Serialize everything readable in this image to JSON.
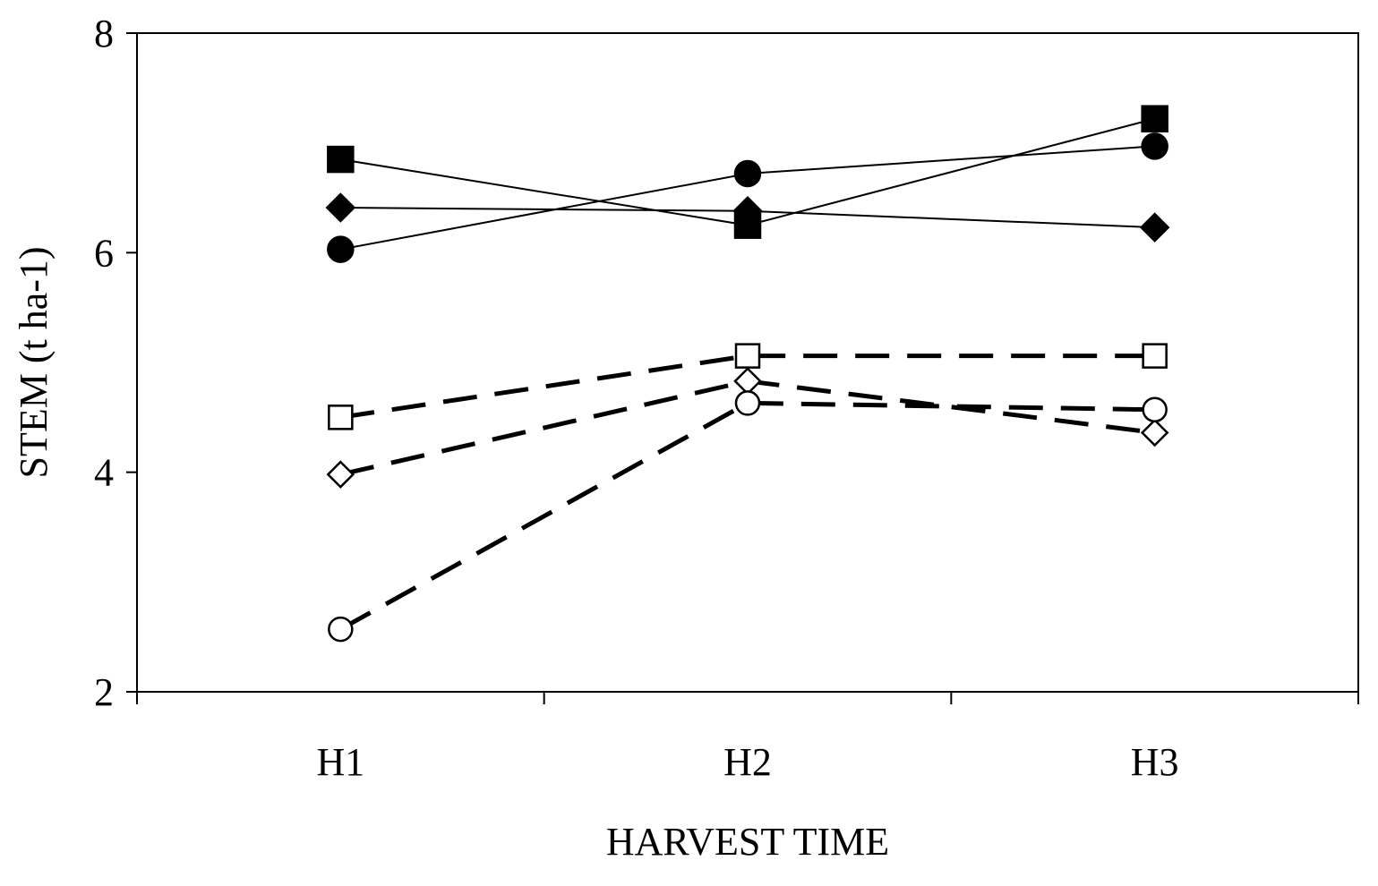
{
  "chart_data": {
    "type": "line",
    "title": "",
    "xlabel": "HARVEST TIME",
    "ylabel": "STEM (t ha-1)",
    "categories": [
      "H1",
      "H2",
      "H3"
    ],
    "ylim": [
      2,
      8
    ],
    "yticks": [
      2,
      4,
      6,
      8
    ],
    "grid": false,
    "legend": "none",
    "series": [
      {
        "marker": "filled-square",
        "line": "solid",
        "values": [
          6.85,
          6.25,
          7.22
        ]
      },
      {
        "marker": "filled-circle",
        "line": "solid",
        "values": [
          6.03,
          6.72,
          6.97
        ]
      },
      {
        "marker": "filled-diamond",
        "line": "solid",
        "values": [
          6.41,
          6.38,
          6.23
        ]
      },
      {
        "marker": "open-square",
        "line": "dashed",
        "values": [
          4.5,
          5.06,
          5.06
        ]
      },
      {
        "marker": "open-diamond",
        "line": "dashed",
        "values": [
          3.98,
          4.83,
          4.36
        ]
      },
      {
        "marker": "open-circle",
        "line": "dashed",
        "values": [
          2.57,
          4.63,
          4.57
        ]
      }
    ]
  }
}
